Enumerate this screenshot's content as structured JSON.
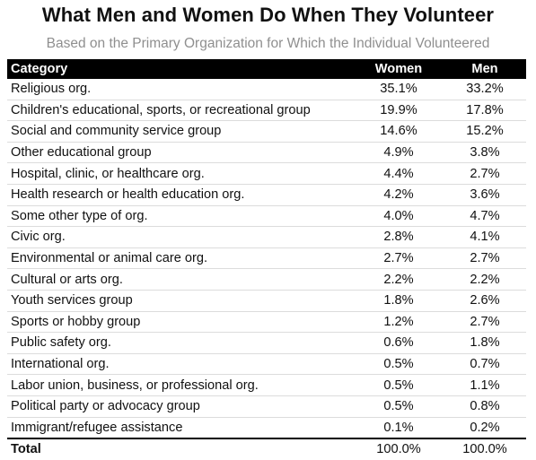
{
  "title": "What Men and Women Do When They Volunteer",
  "subtitle": "Based on the Primary Organization for Which the Individual Volunteered",
  "chart_data": {
    "type": "table",
    "title": "What Men and Women Do When They Volunteer",
    "subtitle": "Based on the Primary Organization for Which the Individual Volunteered",
    "columns": [
      "Category",
      "Women",
      "Men"
    ],
    "rows": [
      {
        "category": "Religious org.",
        "women": "35.1%",
        "men": "33.2%"
      },
      {
        "category": "Children's educational, sports, or recreational group",
        "women": "19.9%",
        "men": "17.8%"
      },
      {
        "category": "Social and community service group",
        "women": "14.6%",
        "men": "15.2%"
      },
      {
        "category": "Other educational group",
        "women": "4.9%",
        "men": "3.8%"
      },
      {
        "category": "Hospital, clinic, or healthcare org.",
        "women": "4.4%",
        "men": "2.7%"
      },
      {
        "category": "Health research or health education org.",
        "women": "4.2%",
        "men": "3.6%"
      },
      {
        "category": "Some other type of org.",
        "women": "4.0%",
        "men": "4.7%"
      },
      {
        "category": "Civic org.",
        "women": "2.8%",
        "men": "4.1%"
      },
      {
        "category": "Environmental or animal care org.",
        "women": "2.7%",
        "men": "2.7%"
      },
      {
        "category": "Cultural or arts org.",
        "women": "2.2%",
        "men": "2.2%"
      },
      {
        "category": "Youth services group",
        "women": "1.8%",
        "men": "2.6%"
      },
      {
        "category": "Sports or hobby group",
        "women": "1.2%",
        "men": "2.7%"
      },
      {
        "category": "Public safety org.",
        "women": "0.6%",
        "men": "1.8%"
      },
      {
        "category": "International org.",
        "women": "0.5%",
        "men": "0.7%"
      },
      {
        "category": "Labor union, business, or professional org.",
        "women": "0.5%",
        "men": "1.1%"
      },
      {
        "category": "Political party or advocacy group",
        "women": "0.5%",
        "men": "0.8%"
      },
      {
        "category": "Immigrant/refugee assistance",
        "women": "0.1%",
        "men": "0.2%"
      }
    ],
    "total": {
      "category": "Total",
      "women": "100.0%",
      "men": "100.0%"
    }
  }
}
